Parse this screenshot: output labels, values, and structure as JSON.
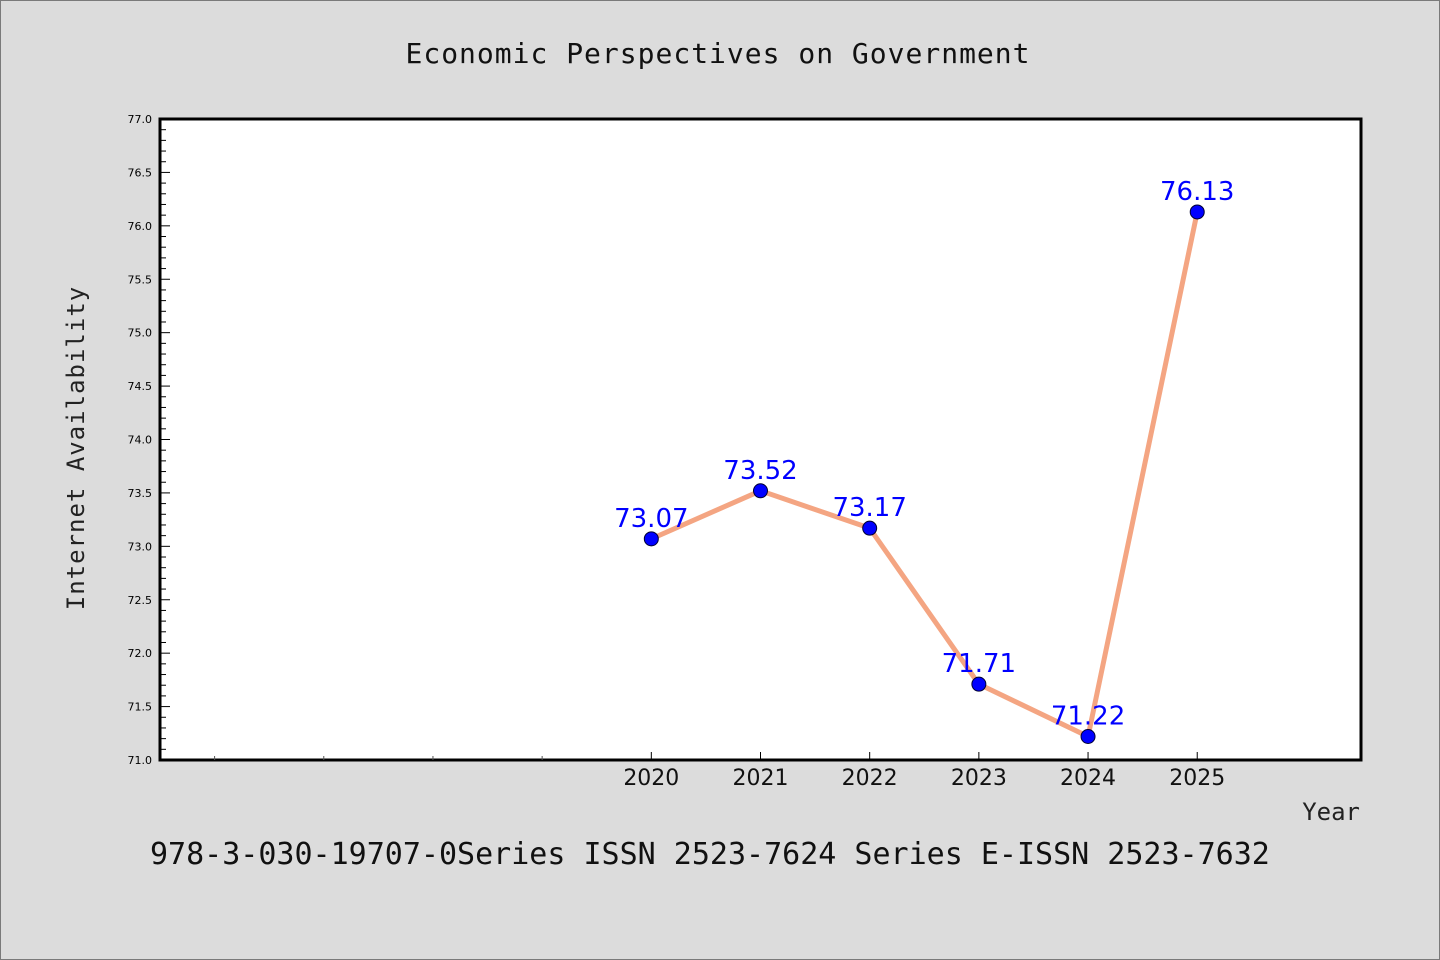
{
  "chart_data": {
    "type": "line",
    "title": "Economic Perspectives on Government",
    "xlabel": "Year",
    "ylabel": "Internet Availability",
    "x": [
      2020,
      2021,
      2022,
      2023,
      2024,
      2025
    ],
    "series": [
      {
        "values": [
          73.07,
          73.52,
          73.17,
          71.71,
          71.22,
          76.13
        ],
        "labels": [
          "73.07",
          "73.52",
          "73.17",
          "71.71",
          "71.22",
          "76.13"
        ]
      }
    ],
    "ylim": [
      71.0,
      77.0
    ],
    "yticks": [
      71.0,
      71.5,
      72.0,
      72.5,
      73.0,
      73.5,
      74.0,
      74.5,
      75.0,
      75.5,
      76.0,
      76.5,
      77.0
    ],
    "ytick_labels": [
      "71.0",
      "71.5",
      "72.0",
      "72.5",
      "73.0",
      "73.5",
      "74.0",
      "74.5",
      "75.0",
      "75.5",
      "76.0",
      "76.5",
      "77.0"
    ],
    "xlim": [
      2015.5,
      2026.5
    ],
    "xticks": [
      2020,
      2021,
      2022,
      2023,
      2024,
      2025
    ],
    "xtick_labels": [
      "2020",
      "2021",
      "2022",
      "2023",
      "2024",
      "2025"
    ],
    "x_minor_ticks": [
      2016,
      2017,
      2018,
      2019
    ],
    "grid": false,
    "line_color": "#f4a582",
    "marker_color": "#0000ff",
    "label_color": "#0000ff"
  },
  "footer": {
    "text": "978-3-030-19707-0Series ISSN 2523-7624 Series E-ISSN 2523-7632"
  }
}
